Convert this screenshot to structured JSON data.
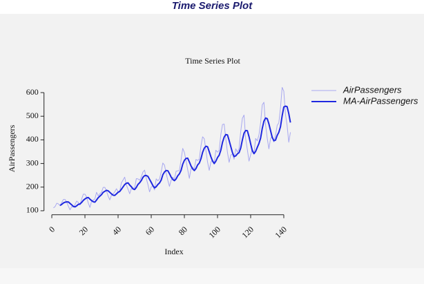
{
  "header": {
    "title": "Time Series Plot"
  },
  "chart_data": {
    "type": "line",
    "title": "Time Series Plot",
    "x_label": "Index",
    "y_label": "AirPassengers",
    "x": [
      1,
      2,
      3,
      4,
      5,
      6,
      7,
      8,
      9,
      10,
      11,
      12,
      13,
      14,
      15,
      16,
      17,
      18,
      19,
      20,
      21,
      22,
      23,
      24,
      25,
      26,
      27,
      28,
      29,
      30,
      31,
      32,
      33,
      34,
      35,
      36,
      37,
      38,
      39,
      40,
      41,
      42,
      43,
      44,
      45,
      46,
      47,
      48,
      49,
      50,
      51,
      52,
      53,
      54,
      55,
      56,
      57,
      58,
      59,
      60,
      61,
      62,
      63,
      64,
      65,
      66,
      67,
      68,
      69,
      70,
      71,
      72,
      73,
      74,
      75,
      76,
      77,
      78,
      79,
      80,
      81,
      82,
      83,
      84,
      85,
      86,
      87,
      88,
      89,
      90,
      91,
      92,
      93,
      94,
      95,
      96,
      97,
      98,
      99,
      100,
      101,
      102,
      103,
      104,
      105,
      106,
      107,
      108,
      109,
      110,
      111,
      112,
      113,
      114,
      115,
      116,
      117,
      118,
      119,
      120,
      121,
      122,
      123,
      124,
      125,
      126,
      127,
      128,
      129,
      130,
      131,
      132,
      133,
      134,
      135,
      136,
      137,
      138,
      139,
      140,
      141,
      142,
      143,
      144
    ],
    "series": [
      {
        "name": "AirPassengers",
        "color": "#a8a8f0",
        "width": 1,
        "values": [
          112,
          118,
          132,
          129,
          121,
          135,
          148,
          148,
          136,
          119,
          104,
          118,
          115,
          126,
          141,
          135,
          125,
          149,
          170,
          170,
          158,
          133,
          114,
          140,
          145,
          150,
          178,
          163,
          172,
          178,
          199,
          199,
          184,
          162,
          146,
          166,
          171,
          180,
          193,
          181,
          183,
          218,
          230,
          242,
          209,
          191,
          172,
          194,
          196,
          196,
          236,
          235,
          229,
          243,
          264,
          272,
          237,
          211,
          180,
          201,
          204,
          188,
          235,
          227,
          234,
          264,
          302,
          293,
          259,
          229,
          203,
          229,
          242,
          233,
          267,
          269,
          270,
          315,
          364,
          347,
          312,
          274,
          237,
          278,
          284,
          277,
          317,
          313,
          318,
          374,
          413,
          405,
          355,
          306,
          271,
          306,
          315,
          301,
          356,
          348,
          355,
          422,
          465,
          467,
          404,
          347,
          305,
          336,
          340,
          318,
          362,
          348,
          363,
          435,
          491,
          505,
          404,
          359,
          310,
          337,
          360,
          342,
          406,
          396,
          420,
          472,
          548,
          559,
          463,
          407,
          362,
          405,
          417,
          391,
          419,
          461,
          472,
          535,
          622,
          606,
          508,
          461,
          390,
          432
        ]
      },
      {
        "name": "MA-AirPassengers",
        "color": "#1f28e0",
        "width": 2,
        "values": [
          null,
          null,
          null,
          null,
          122.4,
          127,
          133,
          136.2,
          137.6,
          137.2,
          131,
          125,
          118.4,
          116.4,
          120.8,
          127,
          128.4,
          135.2,
          144,
          149.8,
          154.4,
          156,
          149,
          143,
          138,
          136.4,
          145.4,
          155.2,
          161.6,
          168.2,
          178,
          182.2,
          186.4,
          184.4,
          178,
          171.4,
          165.8,
          165,
          171.2,
          178.2,
          181.6,
          191,
          201,
          210.8,
          216.4,
          218,
          208.8,
          201.6,
          192.4,
          189.8,
          198.8,
          211.4,
          218.4,
          227.8,
          241.4,
          248.6,
          249,
          245.4,
          232.8,
          220.2,
          206.6,
          196.8,
          201.6,
          211,
          217.6,
          229.6,
          252.4,
          264,
          270.4,
          269.4,
          257.2,
          242.6,
          232.4,
          227.2,
          234.8,
          248,
          256.2,
          270.8,
          297,
          313,
          321.6,
          322.4,
          306.8,
          289.6,
          277,
          270,
          278.6,
          293.8,
          301.8,
          319.8,
          347,
          364.6,
          373,
          370.6,
          350,
          328.6,
          310.6,
          299.8,
          309.8,
          325.2,
          335,
          356.4,
          389.2,
          411.4,
          422.6,
          421,
          397.6,
          371.8,
          346.4,
          329.2,
          332.2,
          340.8,
          346.2,
          365.2,
          399.8,
          428.4,
          439.6,
          438.8,
          413.8,
          383,
          354,
          341.6,
          351,
          368.2,
          384.8,
          407.2,
          448.4,
          479,
          492.4,
          489.8,
          467.8,
          439.2,
          410.8,
          396.4,
          398.8,
          418.6,
          432,
          455.6,
          501.8,
          539.2,
          542.6,
          540.4,
          511.4,
          473.4
        ]
      }
    ],
    "xlim": [
      -4.72,
      149.72
    ],
    "xticks": [
      0,
      20,
      40,
      60,
      80,
      100,
      120,
      140
    ],
    "ylim": [
      83.28,
      642.72
    ],
    "yticks": [
      100,
      200,
      300,
      400,
      500,
      600
    ],
    "legend": "right",
    "grid": false
  }
}
